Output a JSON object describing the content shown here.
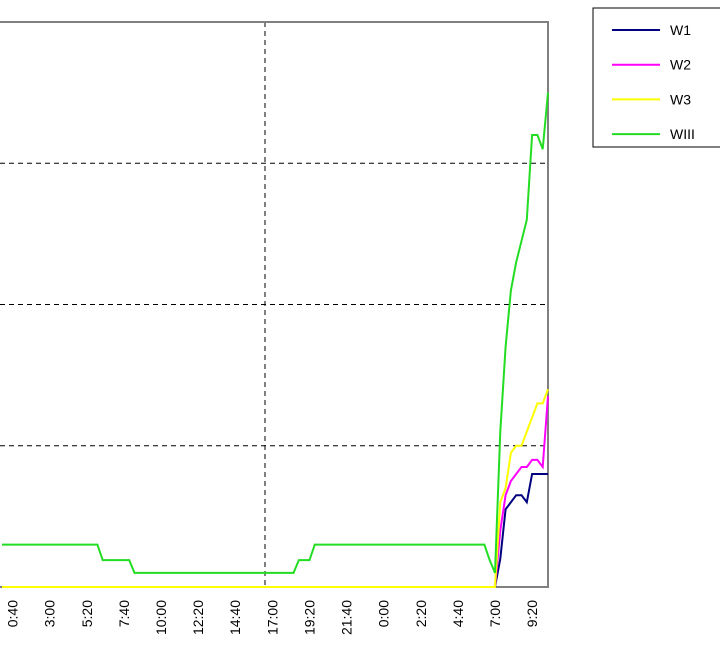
{
  "chart_data": {
    "type": "line",
    "categories": [
      null,
      null,
      "0:40",
      null,
      null,
      null,
      null,
      null,
      null,
      "3:00",
      null,
      null,
      null,
      null,
      null,
      null,
      "5:20",
      null,
      null,
      null,
      null,
      null,
      null,
      "7:40",
      null,
      null,
      null,
      null,
      null,
      null,
      "10:00",
      null,
      null,
      null,
      null,
      null,
      null,
      "12:20",
      null,
      null,
      null,
      null,
      null,
      null,
      "14:40",
      null,
      null,
      null,
      null,
      null,
      null,
      "17:00",
      null,
      null,
      null,
      null,
      null,
      null,
      "19:20",
      null,
      null,
      null,
      null,
      null,
      null,
      "21:40",
      null,
      null,
      null,
      null,
      null,
      null,
      "0:00",
      null,
      null,
      null,
      null,
      null,
      null,
      "2:20",
      null,
      null,
      null,
      null,
      null,
      null,
      "4:40",
      null,
      null,
      null,
      null,
      null,
      null,
      "7:00",
      null,
      null,
      null,
      null,
      null,
      null,
      "9:20",
      null,
      null,
      null
    ],
    "series": [
      {
        "name": "W1",
        "color": "#000080",
        "values": [
          0,
          0,
          0,
          0,
          0,
          0,
          0,
          0,
          0,
          0,
          0,
          0,
          0,
          0,
          0,
          0,
          0,
          0,
          0,
          0,
          0,
          0,
          0,
          0,
          0,
          0,
          0,
          0,
          0,
          0,
          0,
          0,
          0,
          0,
          0,
          0,
          0,
          0,
          0,
          0,
          0,
          0,
          0,
          0,
          0,
          0,
          0,
          0,
          0,
          0,
          0,
          0,
          0,
          0,
          0,
          0,
          0,
          0,
          0,
          0,
          0,
          0,
          0,
          0,
          0,
          0,
          0,
          0,
          0,
          0,
          0,
          0,
          0,
          0,
          0,
          0,
          0,
          0,
          0,
          0,
          0,
          0,
          0,
          0,
          0,
          0,
          0,
          0,
          0,
          0,
          0,
          0,
          0,
          0,
          0.2,
          0.55,
          0.6,
          0.65,
          0.65,
          0.6,
          0.8,
          0.8,
          0.8,
          0.8
        ]
      },
      {
        "name": "W2",
        "color": "#ff00ff",
        "values": [
          0,
          0,
          0,
          0,
          0,
          0,
          0,
          0,
          0,
          0,
          0,
          0,
          0,
          0,
          0,
          0,
          0,
          0,
          0,
          0,
          0,
          0,
          0,
          0,
          0,
          0,
          0,
          0,
          0,
          0,
          0,
          0,
          0,
          0,
          0,
          0,
          0,
          0,
          0,
          0,
          0,
          0,
          0,
          0,
          0,
          0,
          0,
          0,
          0,
          0,
          0,
          0,
          0,
          0,
          0,
          0,
          0,
          0,
          0,
          0,
          0,
          0,
          0,
          0,
          0,
          0,
          0,
          0,
          0,
          0,
          0,
          0,
          0,
          0,
          0,
          0,
          0,
          0,
          0,
          0,
          0,
          0,
          0,
          0,
          0,
          0,
          0,
          0,
          0,
          0,
          0,
          0,
          0,
          0,
          0.4,
          0.65,
          0.75,
          0.8,
          0.85,
          0.85,
          0.9,
          0.9,
          0.85,
          1.35
        ]
      },
      {
        "name": "W3",
        "color": "#ffff00",
        "values": [
          0,
          0,
          0,
          0,
          0,
          0,
          0,
          0,
          0,
          0,
          0,
          0,
          0,
          0,
          0,
          0,
          0,
          0,
          0,
          0,
          0,
          0,
          0,
          0,
          0,
          0,
          0,
          0,
          0,
          0,
          0,
          0,
          0,
          0,
          0,
          0,
          0,
          0,
          0,
          0,
          0,
          0,
          0,
          0,
          0,
          0,
          0,
          0,
          0,
          0,
          0,
          0,
          0,
          0,
          0,
          0,
          0,
          0,
          0,
          0,
          0,
          0,
          0,
          0,
          0,
          0,
          0,
          0,
          0,
          0,
          0,
          0,
          0,
          0,
          0,
          0,
          0,
          0,
          0,
          0,
          0,
          0,
          0,
          0,
          0,
          0,
          0,
          0,
          0,
          0,
          0,
          0,
          0,
          0,
          0.6,
          0.7,
          0.95,
          1.0,
          1.0,
          1.1,
          1.2,
          1.3,
          1.3,
          1.4
        ]
      },
      {
        "name": "WIII",
        "color": "#22dd22",
        "values": [
          0.3,
          0.3,
          0.3,
          0.3,
          0.3,
          0.3,
          0.3,
          0.3,
          0.3,
          0.3,
          0.3,
          0.3,
          0.3,
          0.3,
          0.3,
          0.3,
          0.3,
          0.3,
          0.3,
          0.19,
          0.19,
          0.19,
          0.19,
          0.19,
          0.19,
          0.1,
          0.1,
          0.1,
          0.1,
          0.1,
          0.1,
          0.1,
          0.1,
          0.1,
          0.1,
          0.1,
          0.1,
          0.1,
          0.1,
          0.1,
          0.1,
          0.1,
          0.1,
          0.1,
          0.1,
          0.1,
          0.1,
          0.1,
          0.1,
          0.1,
          0.1,
          0.1,
          0.1,
          0.1,
          0.1,
          0.1,
          0.19,
          0.19,
          0.19,
          0.3,
          0.3,
          0.3,
          0.3,
          0.3,
          0.3,
          0.3,
          0.3,
          0.3,
          0.3,
          0.3,
          0.3,
          0.3,
          0.3,
          0.3,
          0.3,
          0.3,
          0.3,
          0.3,
          0.3,
          0.3,
          0.3,
          0.3,
          0.3,
          0.3,
          0.3,
          0.3,
          0.3,
          0.3,
          0.3,
          0.3,
          0.3,
          0.3,
          0.19,
          0.1,
          1.1,
          1.7,
          2.1,
          2.3,
          2.45,
          2.6,
          3.2,
          3.2,
          3.1,
          3.5
        ]
      }
    ],
    "ylim": [
      0,
      4
    ],
    "yticks": [
      0,
      1,
      2,
      3,
      4
    ],
    "grid": true,
    "legend": "top-right"
  }
}
